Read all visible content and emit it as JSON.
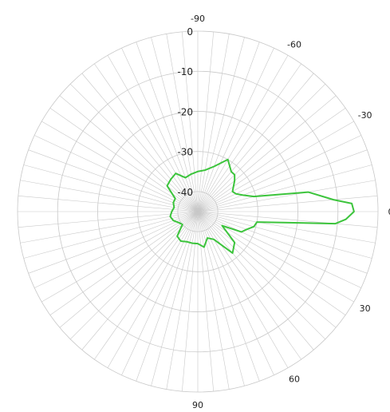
{
  "chart_data": {
    "type": "line",
    "subtype": "polar",
    "title": "",
    "angle_unit": "degrees",
    "angle_direction": "clockwise",
    "zero_direction": "right",
    "radial_range": [
      -45,
      0
    ],
    "rings": [
      0,
      -10,
      -20,
      -30,
      -40
    ],
    "radial_tick_labels": [
      "0",
      "-10",
      "-20",
      "-30",
      "-40"
    ],
    "angle_tick_labels": [
      {
        "angle": -90,
        "label": "-90"
      },
      {
        "angle": -60,
        "label": "-60"
      },
      {
        "angle": -30,
        "label": "-30"
      },
      {
        "angle": 0,
        "label": "0"
      },
      {
        "angle": 30,
        "label": "30"
      },
      {
        "angle": 60,
        "label": "60"
      },
      {
        "angle": 90,
        "label": "90"
      }
    ],
    "spoke_step_deg": 5,
    "grid": true,
    "colors": {
      "series": "#3cc43c",
      "grid": "#c8c8c8",
      "text": "#222222"
    },
    "series": [
      {
        "angle": [
          -180,
          -170,
          -160,
          -150,
          -140,
          -130,
          -120,
          -110,
          -100,
          -90,
          -80,
          -70,
          -60,
          -50,
          -45,
          -40,
          -30,
          -25,
          -20,
          -15,
          -10,
          -5,
          -3,
          0,
          3,
          5,
          10,
          15,
          20,
          25,
          30,
          40,
          50,
          60,
          70,
          80,
          90,
          100,
          110,
          120,
          130,
          140,
          150,
          160,
          170,
          180
        ],
        "r": [
          -38.5,
          -39,
          -38.5,
          -38.5,
          -35,
          -34.5,
          -34,
          -36,
          -35.5,
          -35,
          -34.5,
          -33,
          -30,
          -32,
          -32,
          -33,
          -35,
          -34.5,
          -33,
          -30.5,
          -17,
          -11,
          -6.5,
          -6,
          -8,
          -10.5,
          -30,
          -30.5,
          -32,
          -33,
          -38,
          -33,
          -31.5,
          -37,
          -38,
          -36,
          -37,
          -37,
          -37,
          -36.5,
          -37,
          -40,
          -39.5,
          -38.5,
          -38,
          -38.5
        ]
      }
    ]
  }
}
